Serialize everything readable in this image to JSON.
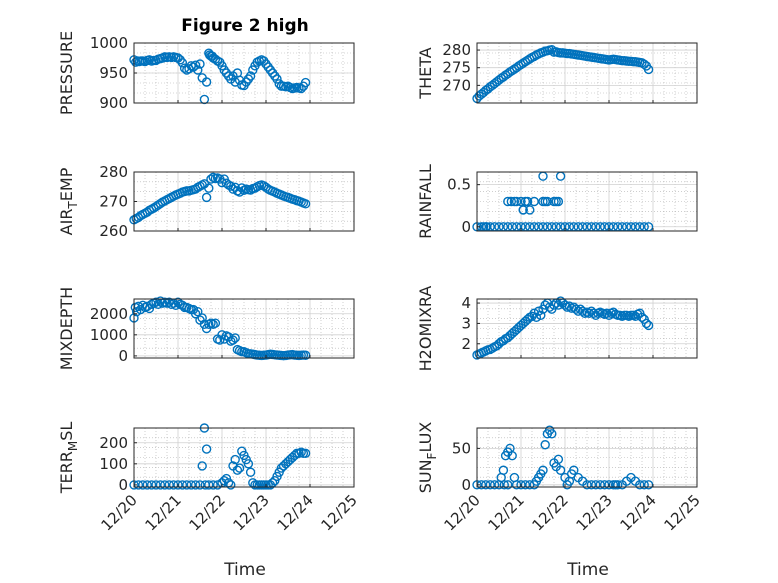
{
  "figure": {
    "title": "Figure 2 high",
    "xlabel": "Time",
    "x_ticks": [
      "12/20",
      "12/21",
      "12/22",
      "12/23",
      "12/24",
      "12/25"
    ]
  },
  "colors": {
    "marker": "#0072BD",
    "axis": "#262626",
    "grid": "#b0b0b0",
    "background": "#ffffff"
  },
  "chart_data": [
    {
      "type": "scatter",
      "ylabel": "PRESSURE",
      "ylim": [
        900,
        1000
      ],
      "yticks": [
        "900",
        "950",
        "1000"
      ],
      "x": [
        0.0,
        0.04,
        0.08,
        0.12,
        0.16,
        0.2,
        0.25,
        0.3,
        0.35,
        0.4,
        0.45,
        0.5,
        0.55,
        0.6,
        0.65,
        0.7,
        0.75,
        0.8,
        0.85,
        0.9,
        0.95,
        1.0,
        1.05,
        1.1,
        1.15,
        1.2,
        1.25,
        1.3,
        1.35,
        1.4,
        1.45,
        1.5,
        1.55,
        1.6,
        1.65,
        1.7,
        1.72,
        1.75,
        1.78,
        1.8,
        1.85,
        1.9,
        1.95,
        2.0,
        2.05,
        2.1,
        2.15,
        2.2,
        2.25,
        2.3,
        2.35,
        2.4,
        2.45,
        2.5,
        2.55,
        2.6,
        2.65,
        2.7,
        2.75,
        2.8,
        2.85,
        2.9,
        2.95,
        3.0,
        3.05,
        3.1,
        3.15,
        3.2,
        3.25,
        3.3,
        3.35,
        3.4,
        3.45,
        3.5,
        3.55,
        3.6,
        3.65,
        3.7,
        3.75,
        3.8,
        3.85,
        3.9
      ],
      "y": [
        972,
        968,
        970,
        969,
        970,
        970,
        969,
        971,
        972,
        970,
        971,
        971,
        973,
        974,
        975,
        977,
        976,
        977,
        976,
        977,
        976,
        975,
        972,
        967,
        958,
        955,
        957,
        962,
        960,
        963,
        955,
        965,
        942,
        906,
        935,
        983,
        980,
        978,
        978,
        975,
        973,
        970,
        968,
        962,
        955,
        950,
        945,
        940,
        945,
        935,
        950,
        938,
        930,
        929,
        935,
        940,
        945,
        955,
        962,
        968,
        970,
        972,
        970,
        965,
        960,
        955,
        950,
        945,
        940,
        932,
        928,
        928,
        927,
        928,
        926,
        924,
        925,
        926,
        925,
        924,
        928,
        934
      ]
    },
    {
      "type": "scatter",
      "ylabel": "THETA",
      "ylim": [
        265,
        282
      ],
      "yticks": [
        "270",
        "275",
        "280"
      ],
      "x": [
        0.0,
        0.05,
        0.1,
        0.15,
        0.2,
        0.25,
        0.3,
        0.35,
        0.4,
        0.45,
        0.5,
        0.55,
        0.6,
        0.65,
        0.7,
        0.75,
        0.8,
        0.85,
        0.9,
        0.95,
        1.0,
        1.05,
        1.1,
        1.15,
        1.2,
        1.25,
        1.3,
        1.35,
        1.4,
        1.45,
        1.5,
        1.55,
        1.6,
        1.65,
        1.7,
        1.75,
        1.8,
        1.85,
        1.9,
        1.95,
        2.0,
        2.05,
        2.1,
        2.15,
        2.2,
        2.25,
        2.3,
        2.35,
        2.4,
        2.45,
        2.5,
        2.55,
        2.6,
        2.65,
        2.7,
        2.75,
        2.8,
        2.85,
        2.9,
        2.95,
        3.0,
        3.05,
        3.1,
        3.15,
        3.2,
        3.25,
        3.3,
        3.35,
        3.4,
        3.45,
        3.5,
        3.55,
        3.6,
        3.65,
        3.7,
        3.75,
        3.8,
        3.85,
        3.9
      ],
      "y": [
        266.3,
        267.0,
        267.5,
        268.0,
        268.6,
        269.0,
        269.6,
        270.0,
        270.5,
        271.0,
        271.5,
        272.0,
        272.4,
        272.9,
        273.3,
        273.8,
        274.2,
        274.6,
        275.0,
        275.5,
        275.9,
        276.3,
        276.7,
        277.1,
        277.5,
        277.9,
        278.2,
        278.6,
        278.9,
        279.2,
        279.4,
        279.7,
        279.8,
        280.0,
        280.1,
        279.4,
        279.5,
        279.3,
        279.2,
        279.2,
        279.1,
        279.0,
        279.0,
        278.9,
        278.8,
        278.7,
        278.6,
        278.5,
        278.4,
        278.3,
        278.2,
        278.1,
        278.0,
        277.9,
        277.8,
        277.7,
        277.6,
        277.5,
        277.4,
        277.3,
        277.2,
        277.3,
        277.4,
        277.3,
        277.2,
        277.1,
        277.0,
        277.0,
        276.9,
        276.8,
        276.8,
        276.7,
        276.7,
        276.6,
        276.5,
        276.4,
        276.0,
        275.5,
        274.5
      ]
    },
    {
      "type": "scatter",
      "ylabel": "AIR_TEMP",
      "ylim": [
        260,
        280
      ],
      "yticks": [
        "260",
        "270",
        "280"
      ],
      "x": [
        0.0,
        0.05,
        0.1,
        0.15,
        0.2,
        0.25,
        0.3,
        0.35,
        0.4,
        0.45,
        0.5,
        0.55,
        0.6,
        0.65,
        0.7,
        0.75,
        0.8,
        0.85,
        0.9,
        0.95,
        1.0,
        1.05,
        1.1,
        1.15,
        1.2,
        1.25,
        1.3,
        1.35,
        1.4,
        1.45,
        1.5,
        1.55,
        1.6,
        1.65,
        1.7,
        1.75,
        1.8,
        1.85,
        1.9,
        1.95,
        2.0,
        2.05,
        2.1,
        2.15,
        2.2,
        2.25,
        2.3,
        2.35,
        2.4,
        2.45,
        2.5,
        2.55,
        2.6,
        2.65,
        2.7,
        2.75,
        2.8,
        2.85,
        2.9,
        2.95,
        3.0,
        3.05,
        3.1,
        3.15,
        3.2,
        3.25,
        3.3,
        3.35,
        3.4,
        3.45,
        3.5,
        3.55,
        3.6,
        3.65,
        3.7,
        3.75,
        3.8,
        3.85,
        3.9
      ],
      "y": [
        263.8,
        264.2,
        264.6,
        265.2,
        265.6,
        266.0,
        266.4,
        267.0,
        267.4,
        267.8,
        268.3,
        268.8,
        269.3,
        269.8,
        270.2,
        270.6,
        271.0,
        271.4,
        271.8,
        272.2,
        272.5,
        272.8,
        273.2,
        273.4,
        273.6,
        273.6,
        273.8,
        274.0,
        274.2,
        274.8,
        275.2,
        275.6,
        276.0,
        271.4,
        274.5,
        277.6,
        278.2,
        277.8,
        278.0,
        277.6,
        276.4,
        277.6,
        276.2,
        275.6,
        275.2,
        274.2,
        274.8,
        273.6,
        273.2,
        274.6,
        273.8,
        274.2,
        274.0,
        273.9,
        274.4,
        274.5,
        275.0,
        275.4,
        275.6,
        275.3,
        274.8,
        274.2,
        273.8,
        273.5,
        273.2,
        272.8,
        272.5,
        272.2,
        271.9,
        271.6,
        271.4,
        271.1,
        270.8,
        270.6,
        270.3,
        270.1,
        269.8,
        269.5,
        269.2
      ]
    },
    {
      "type": "scatter",
      "ylabel": "RAINFALL",
      "ylim": [
        -0.05,
        0.65
      ],
      "yticks": [
        "0",
        "0.5"
      ],
      "x": [
        0.0,
        0.1,
        0.2,
        0.3,
        0.4,
        0.5,
        0.6,
        0.7,
        0.8,
        0.9,
        1.0,
        1.1,
        1.2,
        1.3,
        1.4,
        1.5,
        1.6,
        1.7,
        1.8,
        1.9,
        2.0,
        2.1,
        2.2,
        2.3,
        2.4,
        2.5,
        2.6,
        2.7,
        2.8,
        2.9,
        3.0,
        3.1,
        3.2,
        3.3,
        3.4,
        3.5,
        3.6,
        3.7,
        3.8,
        3.9,
        0.15,
        0.22,
        0.7,
        0.78,
        0.9,
        1.0,
        1.05,
        1.15,
        1.2,
        1.3,
        1.5,
        1.55,
        1.6,
        1.75,
        1.8,
        1.85,
        1.5,
        1.9,
        1.05,
        1.1,
        0.85
      ],
      "y": [
        0,
        0,
        0,
        0,
        0,
        0,
        0,
        0,
        0,
        0,
        0,
        0,
        0,
        0,
        0,
        0,
        0,
        0,
        0,
        0,
        0,
        0,
        0,
        0,
        0,
        0,
        0,
        0,
        0,
        0,
        0,
        0,
        0,
        0,
        0,
        0,
        0,
        0,
        0,
        0,
        0,
        0,
        0.3,
        0.3,
        0.3,
        0.3,
        0.2,
        0.3,
        0.2,
        0.3,
        0.3,
        0.3,
        0.3,
        0.3,
        0.3,
        0.3,
        0.6,
        0.6,
        0.2,
        0.3,
        0.3
      ]
    },
    {
      "type": "scatter",
      "ylabel": "MIXDEPTH",
      "ylim": [
        -100,
        2700
      ],
      "yticks": [
        "0",
        "1000",
        "2000"
      ],
      "x": [
        0.0,
        0.03,
        0.06,
        0.1,
        0.15,
        0.2,
        0.25,
        0.3,
        0.35,
        0.4,
        0.45,
        0.5,
        0.55,
        0.6,
        0.65,
        0.7,
        0.75,
        0.8,
        0.85,
        0.9,
        0.95,
        1.0,
        1.05,
        1.1,
        1.15,
        1.2,
        1.25,
        1.3,
        1.35,
        1.4,
        1.45,
        1.5,
        1.55,
        1.6,
        1.65,
        1.7,
        1.75,
        1.8,
        1.85,
        1.9,
        1.95,
        2.0,
        2.05,
        2.1,
        2.15,
        2.2,
        2.25,
        2.3,
        2.35,
        2.4,
        2.45,
        2.5,
        2.55,
        2.6,
        2.65,
        2.7,
        2.75,
        2.8,
        2.85,
        2.9,
        2.95,
        3.0,
        3.05,
        3.1,
        3.15,
        3.2,
        3.25,
        3.3,
        3.35,
        3.4,
        3.45,
        3.5,
        3.55,
        3.6,
        3.65,
        3.7,
        3.75,
        3.8,
        3.85,
        3.9
      ],
      "y": [
        1800,
        2300,
        2100,
        2350,
        2200,
        2400,
        2300,
        2350,
        2250,
        2450,
        2500,
        2550,
        2450,
        2600,
        2500,
        2550,
        2500,
        2550,
        2450,
        2500,
        2400,
        2550,
        2450,
        2400,
        2300,
        2300,
        2250,
        2200,
        2200,
        2000,
        2100,
        1700,
        1800,
        1500,
        1300,
        1500,
        1550,
        1500,
        1550,
        800,
        750,
        1000,
        800,
        950,
        900,
        700,
        750,
        850,
        300,
        250,
        200,
        200,
        150,
        100,
        100,
        80,
        60,
        40,
        30,
        20,
        30,
        40,
        60,
        80,
        70,
        50,
        40,
        30,
        20,
        10,
        20,
        40,
        50,
        60,
        40,
        30,
        20,
        30,
        40,
        30
      ]
    },
    {
      "type": "scatter",
      "ylabel": "H2OMIXRA",
      "ylim": [
        1.3,
        4.2
      ],
      "yticks": [
        "2",
        "3",
        "4"
      ],
      "x": [
        0.0,
        0.05,
        0.1,
        0.15,
        0.2,
        0.25,
        0.3,
        0.35,
        0.4,
        0.45,
        0.5,
        0.55,
        0.6,
        0.65,
        0.7,
        0.75,
        0.8,
        0.85,
        0.9,
        0.95,
        1.0,
        1.05,
        1.1,
        1.15,
        1.2,
        1.25,
        1.3,
        1.35,
        1.4,
        1.45,
        1.5,
        1.55,
        1.6,
        1.65,
        1.7,
        1.75,
        1.8,
        1.85,
        1.9,
        1.95,
        2.0,
        2.05,
        2.1,
        2.15,
        2.2,
        2.25,
        2.3,
        2.35,
        2.4,
        2.45,
        2.5,
        2.55,
        2.6,
        2.65,
        2.7,
        2.75,
        2.8,
        2.85,
        2.9,
        2.95,
        3.0,
        3.05,
        3.1,
        3.15,
        3.2,
        3.25,
        3.3,
        3.35,
        3.4,
        3.45,
        3.5,
        3.55,
        3.6,
        3.65,
        3.7,
        3.75,
        3.8,
        3.85,
        3.9
      ],
      "y": [
        1.45,
        1.5,
        1.55,
        1.6,
        1.65,
        1.7,
        1.72,
        1.78,
        1.85,
        1.9,
        2.0,
        2.1,
        2.15,
        2.25,
        2.3,
        2.4,
        2.5,
        2.6,
        2.7,
        2.8,
        2.9,
        3.0,
        3.1,
        3.2,
        3.3,
        3.35,
        3.5,
        3.3,
        3.6,
        3.4,
        3.7,
        3.9,
        4.0,
        3.8,
        3.7,
        3.9,
        4.0,
        3.9,
        4.1,
        4.0,
        3.9,
        3.8,
        3.85,
        3.75,
        3.8,
        3.7,
        3.6,
        3.7,
        3.6,
        3.5,
        3.55,
        3.5,
        3.6,
        3.5,
        3.4,
        3.5,
        3.55,
        3.5,
        3.45,
        3.5,
        3.4,
        3.5,
        3.55,
        3.45,
        3.4,
        3.4,
        3.35,
        3.4,
        3.4,
        3.35,
        3.4,
        3.4,
        3.35,
        3.45,
        3.5,
        3.3,
        3.2,
        3.0,
        2.9
      ]
    },
    {
      "type": "scatter",
      "ylabel": "TERR_MSL",
      "ylim": [
        -10,
        270
      ],
      "yticks": [
        "0",
        "100",
        "200"
      ],
      "x": [
        0.0,
        0.1,
        0.2,
        0.3,
        0.4,
        0.5,
        0.6,
        0.7,
        0.8,
        0.9,
        1.0,
        1.1,
        1.2,
        1.3,
        1.4,
        1.5,
        1.55,
        1.6,
        1.62,
        1.65,
        1.7,
        1.8,
        1.9,
        2.0,
        2.05,
        2.1,
        2.15,
        2.2,
        2.25,
        2.3,
        2.35,
        2.4,
        2.45,
        2.5,
        2.55,
        2.6,
        2.65,
        2.7,
        2.75,
        2.8,
        2.85,
        2.9,
        2.95,
        3.0,
        3.05,
        3.1,
        3.15,
        3.2,
        3.25,
        3.3,
        3.35,
        3.4,
        3.45,
        3.5,
        3.55,
        3.6,
        3.65,
        3.7,
        3.75,
        3.8,
        3.85,
        3.9
      ],
      "y": [
        0,
        0,
        0,
        0,
        0,
        0,
        0,
        0,
        0,
        0,
        0,
        0,
        0,
        0,
        0,
        0,
        90,
        270,
        0,
        170,
        0,
        0,
        0,
        10,
        20,
        30,
        10,
        0,
        90,
        120,
        70,
        80,
        160,
        140,
        120,
        100,
        60,
        10,
        0,
        0,
        0,
        0,
        0,
        0,
        0,
        0,
        10,
        20,
        40,
        60,
        80,
        90,
        100,
        110,
        120,
        130,
        140,
        150,
        150,
        155,
        150,
        150
      ]
    },
    {
      "type": "scatter",
      "ylabel": "SUN_FLUX",
      "ylim": [
        -3,
        78
      ],
      "yticks": [
        "0",
        "50"
      ],
      "x": [
        0.0,
        0.1,
        0.2,
        0.3,
        0.4,
        0.5,
        0.55,
        0.6,
        0.65,
        0.7,
        0.75,
        0.8,
        0.85,
        0.9,
        1.0,
        1.1,
        1.2,
        1.3,
        1.35,
        1.4,
        1.45,
        1.5,
        1.55,
        1.6,
        1.65,
        1.7,
        1.75,
        1.8,
        1.85,
        1.9,
        2.0,
        2.05,
        2.1,
        2.15,
        2.2,
        2.3,
        2.4,
        2.5,
        2.6,
        2.7,
        2.8,
        2.9,
        3.0,
        3.1,
        3.15,
        3.2,
        3.3,
        3.4,
        3.5,
        3.6,
        3.7,
        3.8,
        3.9,
        0.62,
        0.7
      ],
      "y": [
        0,
        0,
        0,
        0,
        0,
        0,
        10,
        20,
        40,
        45,
        50,
        40,
        10,
        0,
        0,
        0,
        0,
        0,
        5,
        10,
        15,
        20,
        55,
        70,
        75,
        70,
        30,
        25,
        35,
        20,
        10,
        0,
        5,
        15,
        20,
        10,
        5,
        0,
        0,
        0,
        0,
        0,
        0,
        0,
        0,
        0,
        0,
        5,
        10,
        5,
        0,
        0,
        0,
        0,
        0
      ]
    }
  ]
}
